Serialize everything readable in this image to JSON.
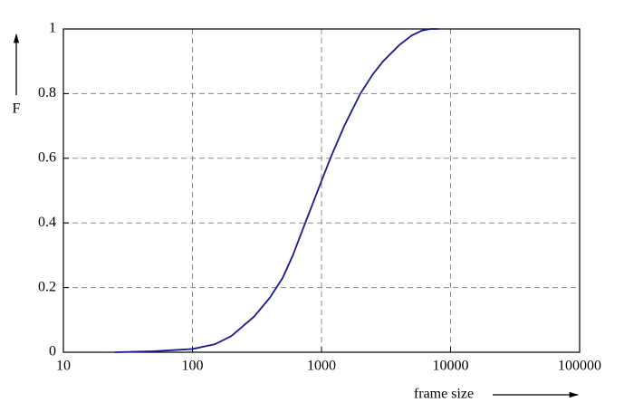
{
  "chart_data": {
    "type": "line",
    "x_label": "frame size",
    "y_label": "F",
    "xscale": "log",
    "grid": true,
    "x": [
      25,
      50,
      100,
      150,
      200,
      300,
      400,
      500,
      600,
      700,
      800,
      1000,
      1200,
      1500,
      2000,
      2500,
      3000,
      4000,
      5000,
      6000,
      7000,
      8000
    ],
    "series": [
      {
        "color": "#1a1a8c",
        "values": [
          0,
          0.003,
          0.01,
          0.025,
          0.05,
          0.11,
          0.17,
          0.23,
          0.3,
          0.37,
          0.43,
          0.53,
          0.61,
          0.7,
          0.8,
          0.86,
          0.9,
          0.95,
          0.98,
          0.995,
          1,
          1
        ]
      }
    ],
    "xlim": [
      10,
      100000
    ],
    "xticks": [
      10,
      100,
      1000,
      10000,
      100000
    ],
    "ylim": [
      0,
      1
    ],
    "yticks": [
      0,
      0.2,
      0.4,
      0.6,
      0.8,
      1
    ]
  }
}
